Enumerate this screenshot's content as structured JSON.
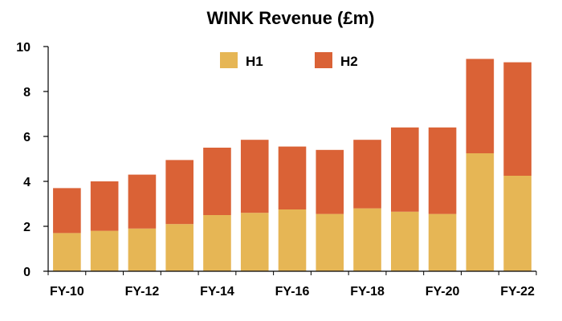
{
  "chart_data": {
    "type": "bar",
    "stacked": true,
    "title": "WINK Revenue (£m)",
    "xlabel": "",
    "ylabel": "",
    "ylim": [
      0,
      10
    ],
    "yticks": [
      0,
      2,
      4,
      6,
      8,
      10
    ],
    "categories": [
      "FY-10",
      "FY-11",
      "FY-12",
      "FY-13",
      "FY-14",
      "FY-15",
      "FY-16",
      "FY-17",
      "FY-18",
      "FY-19",
      "FY-20",
      "FY-21",
      "FY-22"
    ],
    "x_tick_labels": [
      "FY-10",
      "",
      "FY-12",
      "",
      "FY-14",
      "",
      "FY-16",
      "",
      "FY-18",
      "",
      "FY-20",
      "",
      "FY-22"
    ],
    "series": [
      {
        "name": "H1",
        "color": "#E6B655",
        "values": [
          1.7,
          1.8,
          1.9,
          2.1,
          2.5,
          2.6,
          2.75,
          2.55,
          2.8,
          2.65,
          2.55,
          5.25,
          4.25
        ]
      },
      {
        "name": "H2",
        "color": "#DA6236",
        "values": [
          2.0,
          2.2,
          2.4,
          2.85,
          3.0,
          3.25,
          2.8,
          2.85,
          3.05,
          3.75,
          3.85,
          4.2,
          5.05
        ]
      }
    ],
    "legend_position": "top",
    "grid": false
  }
}
